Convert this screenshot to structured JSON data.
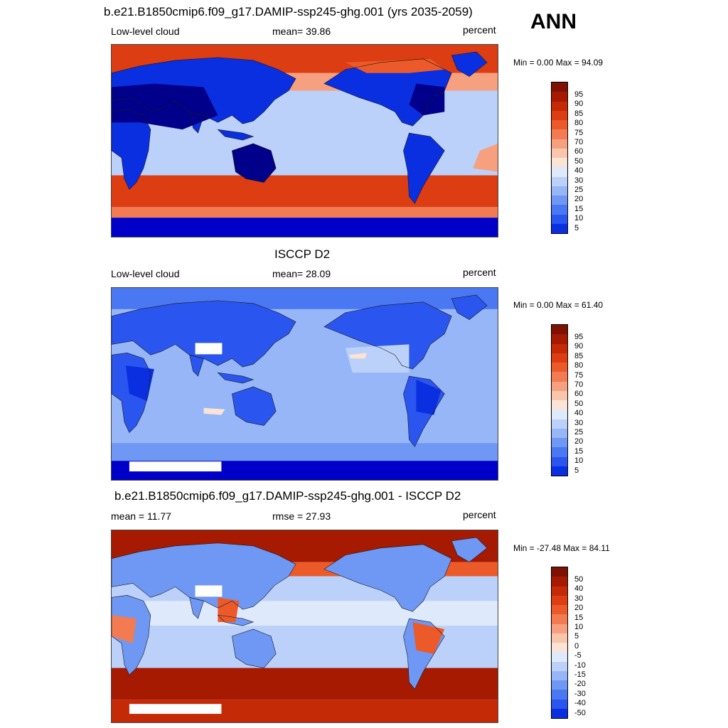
{
  "season": "ANN",
  "panels": [
    {
      "title": "b.e21.B1850cmip6.f09_g17.DAMIP-ssp245-ghg.001 (yrs 2035-2059)",
      "left_label": "Low-level cloud",
      "center_label": "mean=  39.86",
      "units": "percent",
      "minmax": "Min =   0.00 Max =  94.09",
      "type": "model",
      "colorbar_labels": [
        "95",
        "90",
        "85",
        "80",
        "75",
        "70",
        "60",
        "50",
        "40",
        "30",
        "25",
        "20",
        "15",
        "10",
        "5"
      ]
    },
    {
      "title": "ISCCP D2",
      "left_label": "Low-level cloud",
      "center_label": "mean=  28.09",
      "units": "percent",
      "minmax": "Min =   0.00 Max =  61.40",
      "type": "obs",
      "colorbar_labels": [
        "95",
        "90",
        "85",
        "80",
        "75",
        "70",
        "60",
        "50",
        "40",
        "30",
        "25",
        "20",
        "15",
        "10",
        "5"
      ]
    },
    {
      "title": "b.e21.B1850cmip6.f09_g17.DAMIP-ssp245-ghg.001 - ISCCP D2",
      "left_label": "mean =  11.77",
      "center_label": "rmse =  27.93",
      "units": "percent",
      "minmax": "Min = -27.48 Max =  84.11",
      "type": "diff",
      "colorbar_labels": [
        "50",
        "40",
        "30",
        "20",
        "15",
        "10",
        "5",
        "0",
        "-5",
        "-10",
        "-15",
        "-20",
        "-30",
        "-40",
        "-50"
      ]
    }
  ],
  "colors": {
    "blue_ramp": [
      "#00008b",
      "#0000c8",
      "#0a2fe0",
      "#2a55ee",
      "#4a78f2",
      "#6f97f4",
      "#97b6f7",
      "#bcd1fa",
      "#dfe9fc"
    ],
    "red_ramp": [
      "#fbe3d5",
      "#f9c6ad",
      "#f6a07f",
      "#f27b52",
      "#ec5a2a",
      "#dc3d12",
      "#c42a06",
      "#a51a00",
      "#7f1100"
    ],
    "land_outline": "#1a1a1a"
  }
}
